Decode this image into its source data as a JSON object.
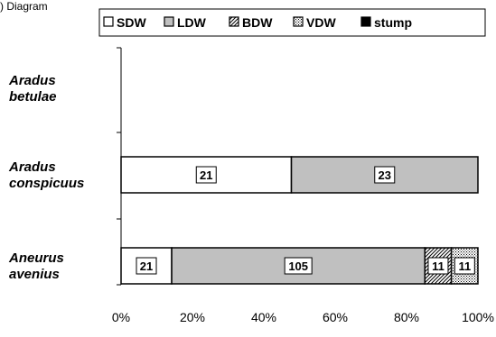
{
  "caption": ") Diagram",
  "chart_data": {
    "type": "bar",
    "orientation": "horizontal",
    "stacked": "percent",
    "categories": [
      "Aradus betulae",
      "Aradus conspicuus",
      "Aneurus avenius"
    ],
    "category_lines": [
      [
        "Aradus",
        "betulae"
      ],
      [
        "Aradus",
        "conspicuus"
      ],
      [
        "Aneurus",
        "avenius"
      ]
    ],
    "series": [
      {
        "name": "SDW",
        "values": [
          0,
          21,
          21
        ],
        "fill": "#ffffff",
        "pattern": "none"
      },
      {
        "name": "LDW",
        "values": [
          0,
          23,
          105
        ],
        "fill": "#c0c0c0",
        "pattern": "none"
      },
      {
        "name": "BDW",
        "values": [
          0,
          0,
          11
        ],
        "fill": "#ffffff",
        "pattern": "diagonal"
      },
      {
        "name": "VDW",
        "values": [
          0,
          0,
          11
        ],
        "fill": "#ffffff",
        "pattern": "dots"
      },
      {
        "name": "stump",
        "values": [
          0,
          0,
          0
        ],
        "fill": "#000000",
        "pattern": "none"
      }
    ],
    "data_labels": true,
    "xlim": [
      0,
      100
    ],
    "x_ticks": [
      "0%",
      "20%",
      "40%",
      "60%",
      "80%",
      "100%"
    ],
    "x_tick_values": [
      0,
      20,
      40,
      60,
      80,
      100
    ],
    "legend_position": "top",
    "grid": false,
    "title": "",
    "xlabel": "",
    "ylabel": ""
  }
}
